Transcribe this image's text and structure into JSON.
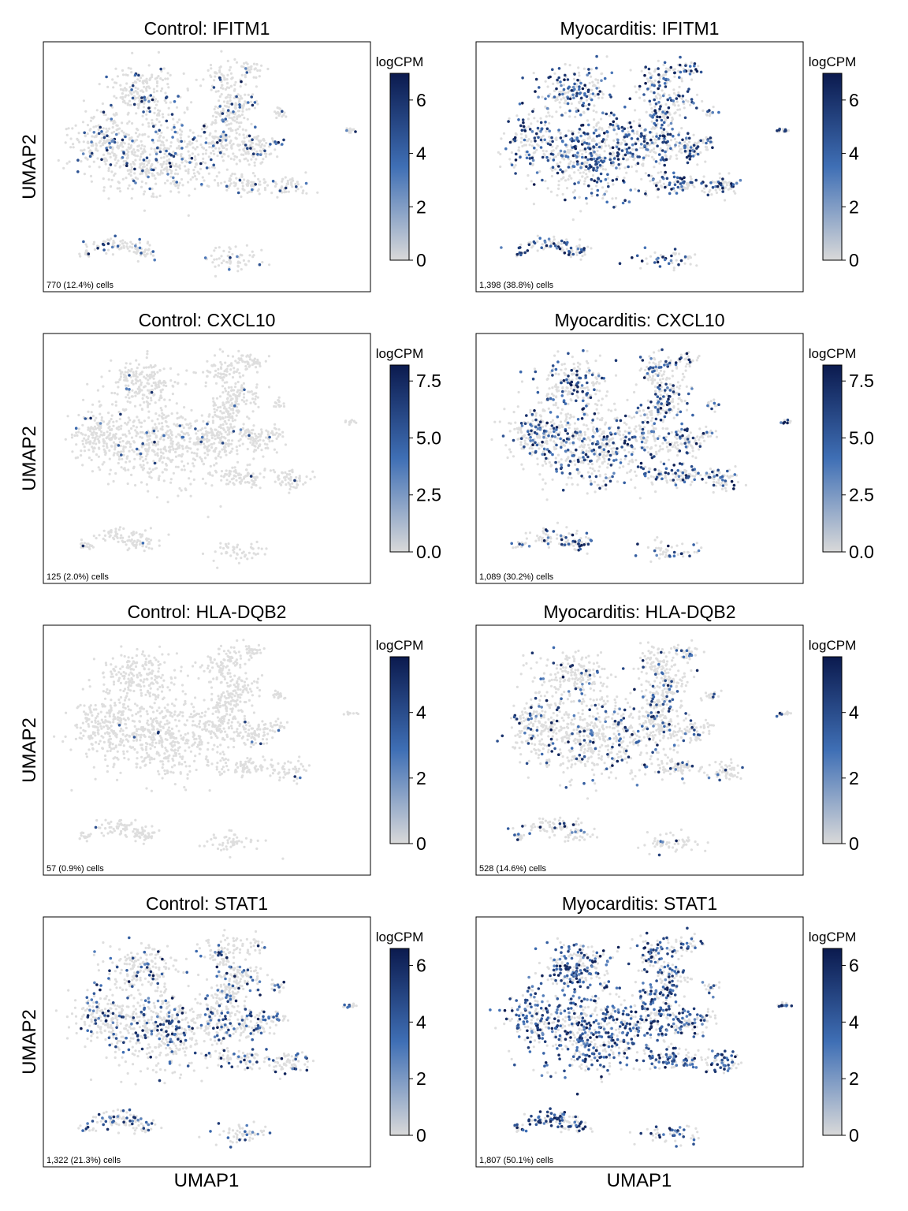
{
  "figure": {
    "x_axis_label": "UMAP1",
    "y_axis_label": "UMAP2",
    "colorbar_label": "logCPM",
    "colors": {
      "low": "#d9d9d9",
      "mid": "#3f6fb5",
      "high": "#0b1a4e",
      "background_cell": "#dedede"
    }
  },
  "chart_data": [
    {
      "type": "scatter",
      "title": "Control: IFITM1",
      "condition": "Control",
      "gene": "IFITM1",
      "annotation": "770 (12.4%) cells",
      "cbar_max": 7.0,
      "cbar_ticks": [
        0,
        2,
        4,
        6
      ],
      "cbar_tick_labels": [
        "0",
        "2",
        "4",
        "6"
      ],
      "density": 0.124
    },
    {
      "type": "scatter",
      "title": "Myocarditis: IFITM1",
      "condition": "Myocarditis",
      "gene": "IFITM1",
      "annotation": "1,398 (38.8%) cells",
      "cbar_max": 7.0,
      "cbar_ticks": [
        0,
        2,
        4,
        6
      ],
      "cbar_tick_labels": [
        "0",
        "2",
        "4",
        "6"
      ],
      "density": 0.388
    },
    {
      "type": "scatter",
      "title": "Control: CXCL10",
      "condition": "Control",
      "gene": "CXCL10",
      "annotation": "125 (2.0%) cells",
      "cbar_max": 8.2,
      "cbar_ticks": [
        0,
        2.5,
        5,
        7.5
      ],
      "cbar_tick_labels": [
        "0.0",
        "2.5",
        "5.0",
        "7.5"
      ],
      "density": 0.02
    },
    {
      "type": "scatter",
      "title": "Myocarditis: CXCL10",
      "condition": "Myocarditis",
      "gene": "CXCL10",
      "annotation": "1,089 (30.2%) cells",
      "cbar_max": 8.2,
      "cbar_ticks": [
        0,
        2.5,
        5,
        7.5
      ],
      "cbar_tick_labels": [
        "0.0",
        "2.5",
        "5.0",
        "7.5"
      ],
      "density": 0.302
    },
    {
      "type": "scatter",
      "title": "Control: HLA-DQB2",
      "condition": "Control",
      "gene": "HLA-DQB2",
      "annotation": "57 (0.9%) cells",
      "cbar_max": 5.7,
      "cbar_ticks": [
        0,
        2,
        4
      ],
      "cbar_tick_labels": [
        "0",
        "2",
        "4"
      ],
      "density": 0.009
    },
    {
      "type": "scatter",
      "title": "Myocarditis: HLA-DQB2",
      "condition": "Myocarditis",
      "gene": "HLA-DQB2",
      "annotation": "528 (14.6%) cells",
      "cbar_max": 5.7,
      "cbar_ticks": [
        0,
        2,
        4
      ],
      "cbar_tick_labels": [
        "0",
        "2",
        "4"
      ],
      "density": 0.146
    },
    {
      "type": "scatter",
      "title": "Control: STAT1",
      "condition": "Control",
      "gene": "STAT1",
      "annotation": "1,322 (21.3%) cells",
      "cbar_max": 6.6,
      "cbar_ticks": [
        0,
        2,
        4,
        6
      ],
      "cbar_tick_labels": [
        "0",
        "2",
        "4",
        "6"
      ],
      "density": 0.213
    },
    {
      "type": "scatter",
      "title": "Myocarditis: STAT1",
      "condition": "Myocarditis",
      "gene": "STAT1",
      "annotation": "1,807 (50.1%) cells",
      "cbar_max": 6.6,
      "cbar_ticks": [
        0,
        2,
        4,
        6
      ],
      "cbar_tick_labels": [
        "0",
        "2",
        "4",
        "6"
      ],
      "density": 0.501
    }
  ]
}
